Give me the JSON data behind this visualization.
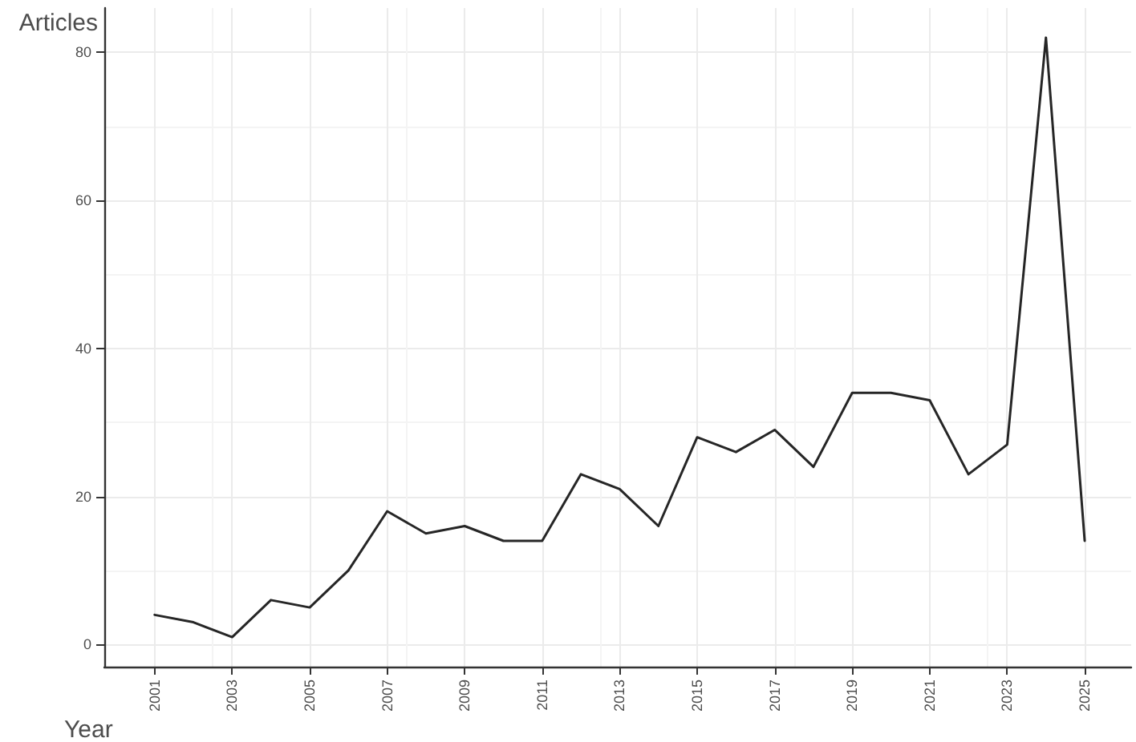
{
  "chart_data": {
    "type": "line",
    "xlabel": "Year",
    "ylabel": "Articles",
    "x": [
      2001,
      2002,
      2003,
      2004,
      2005,
      2006,
      2007,
      2008,
      2009,
      2010,
      2011,
      2012,
      2013,
      2014,
      2015,
      2016,
      2017,
      2018,
      2019,
      2020,
      2021,
      2022,
      2023,
      2024,
      2025
    ],
    "series": [
      {
        "color": "#262626",
        "values": [
          4,
          3,
          1,
          6,
          5,
          10,
          18,
          15,
          16,
          14,
          14,
          23,
          21,
          16,
          28,
          26,
          29,
          24,
          34,
          34,
          33,
          23,
          27,
          82,
          14
        ]
      }
    ],
    "xlim": [
      1999.7,
      2026.2
    ],
    "xticks": [
      2001,
      2003,
      2005,
      2007,
      2009,
      2011,
      2013,
      2015,
      2017,
      2019,
      2021,
      2023,
      2025
    ],
    "ylim": [
      -3,
      86
    ],
    "yticks": [
      0,
      20,
      40,
      60,
      80
    ],
    "grid": true,
    "marker": "none",
    "line_style": "solid"
  }
}
